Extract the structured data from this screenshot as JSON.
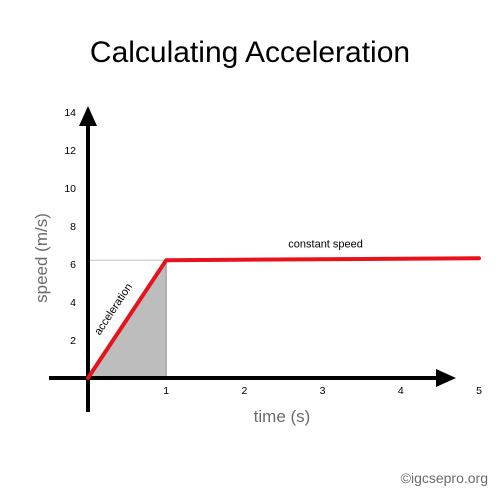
{
  "chart_data": {
    "type": "line",
    "title": "Calculating Acceleration",
    "xlabel": "time (s)",
    "ylabel": "speed (m/s)",
    "xlim": [
      0,
      5
    ],
    "ylim": [
      0,
      14
    ],
    "x_ticks": [
      "1",
      "2",
      "3",
      "4",
      "5"
    ],
    "y_ticks": [
      "2",
      "4",
      "6",
      "8",
      "10",
      "12",
      "14"
    ],
    "grid": false,
    "legend": "none",
    "series": [
      {
        "x": [
          0,
          1,
          5
        ],
        "y": [
          0,
          6.2,
          6.3
        ],
        "color": "#e8121b"
      }
    ],
    "shaded_region": {
      "x": [
        0,
        1
      ],
      "fill": "#bdbdbd"
    },
    "annotations": {
      "acceleration": "acceleration",
      "constant_speed": "constant speed"
    }
  },
  "footer": {
    "credit": "©igcsepro.org"
  }
}
